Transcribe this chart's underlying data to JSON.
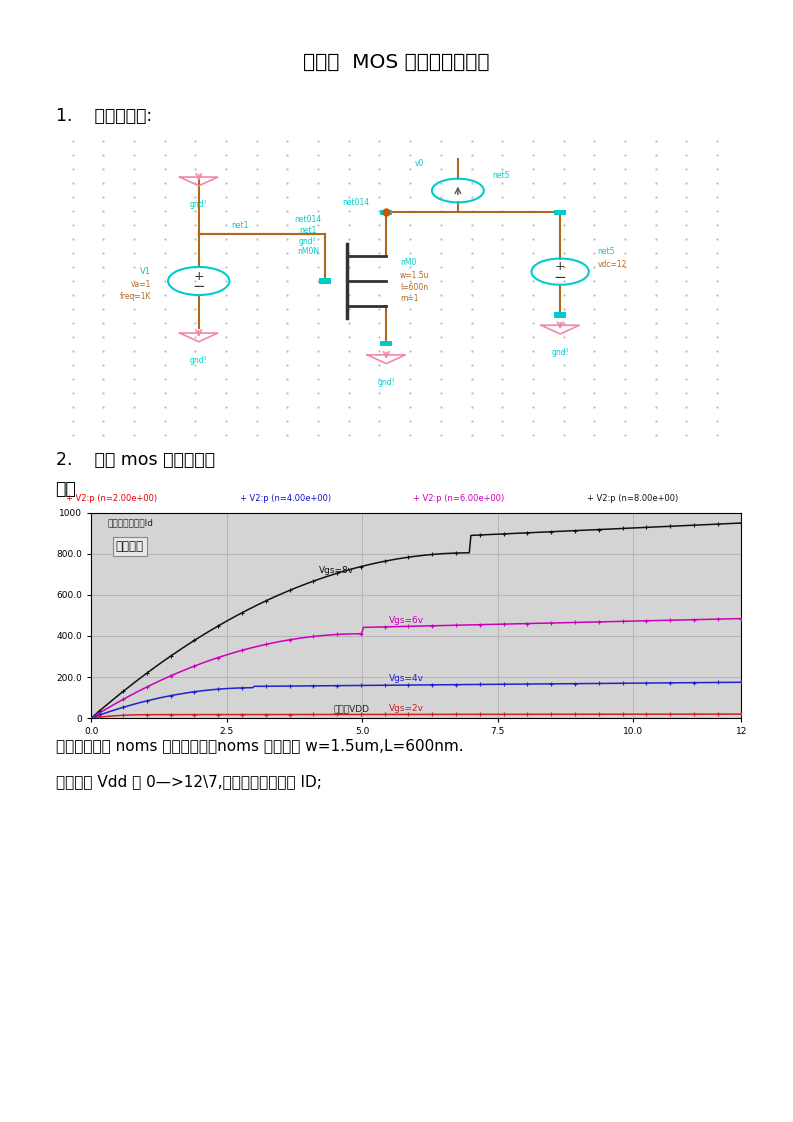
{
  "title_regular": "实验一  ",
  "title_bold": "MOS",
  "title_rest": " 管基本特性测试",
  "section1": "1.    电路原理图:",
  "section2_line1": "2.    测试 mos 管的输出特",
  "section2_line2": "性：",
  "desc_line1": "测量的是一个 noms 的输出特性，noms 的参数为 w=1.5um,L=600nm.",
  "desc_line2": "横坐标为 Vdd 从 0—>12\\7,纵坐标为漏极电流 ID;",
  "legend_items": [
    "+ V2:p (n=2.00e+00)",
    "+ V2:p (n=4.00e+00)",
    "+ V2:p (n=6.00e+00)",
    "+ V2:p (n=8.00e+00)"
  ],
  "legend_colors": [
    "#dd0000",
    "#1111cc",
    "#cc00bb",
    "#111111"
  ],
  "plot_outer_bg": "#b8b8b8",
  "plot_inner_bg": "#d4d4d4",
  "grid_color": "#aaaaaa",
  "ylabel_text": "纵坐标漏极电流Id",
  "xlabel_text": "横坐标VDD",
  "annotation_text": "输出特性",
  "curve_labels": [
    "Vgs=8v",
    "Vgs=6v",
    "Vgs=4v",
    "Vgs=2v"
  ],
  "curve_colors": [
    "#111111",
    "#cc00bb",
    "#2222cc",
    "#cc2222"
  ],
  "x_ticks": [
    0.0,
    2.5,
    5.0,
    7.5,
    10.0,
    12
  ],
  "y_ticks": [
    0,
    200,
    400,
    600,
    800,
    1000
  ],
  "xlim": [
    0,
    12
  ],
  "ylim": [
    0,
    1000
  ],
  "page_bg": "#ffffff",
  "circ_bg": "#eaf4ff",
  "dot_color": "#bbbbbb",
  "wire_color": "#b06820",
  "pin_color": "#00cccc",
  "gnd_arrow_color": "#f088aa",
  "label_color": "#00cccc"
}
